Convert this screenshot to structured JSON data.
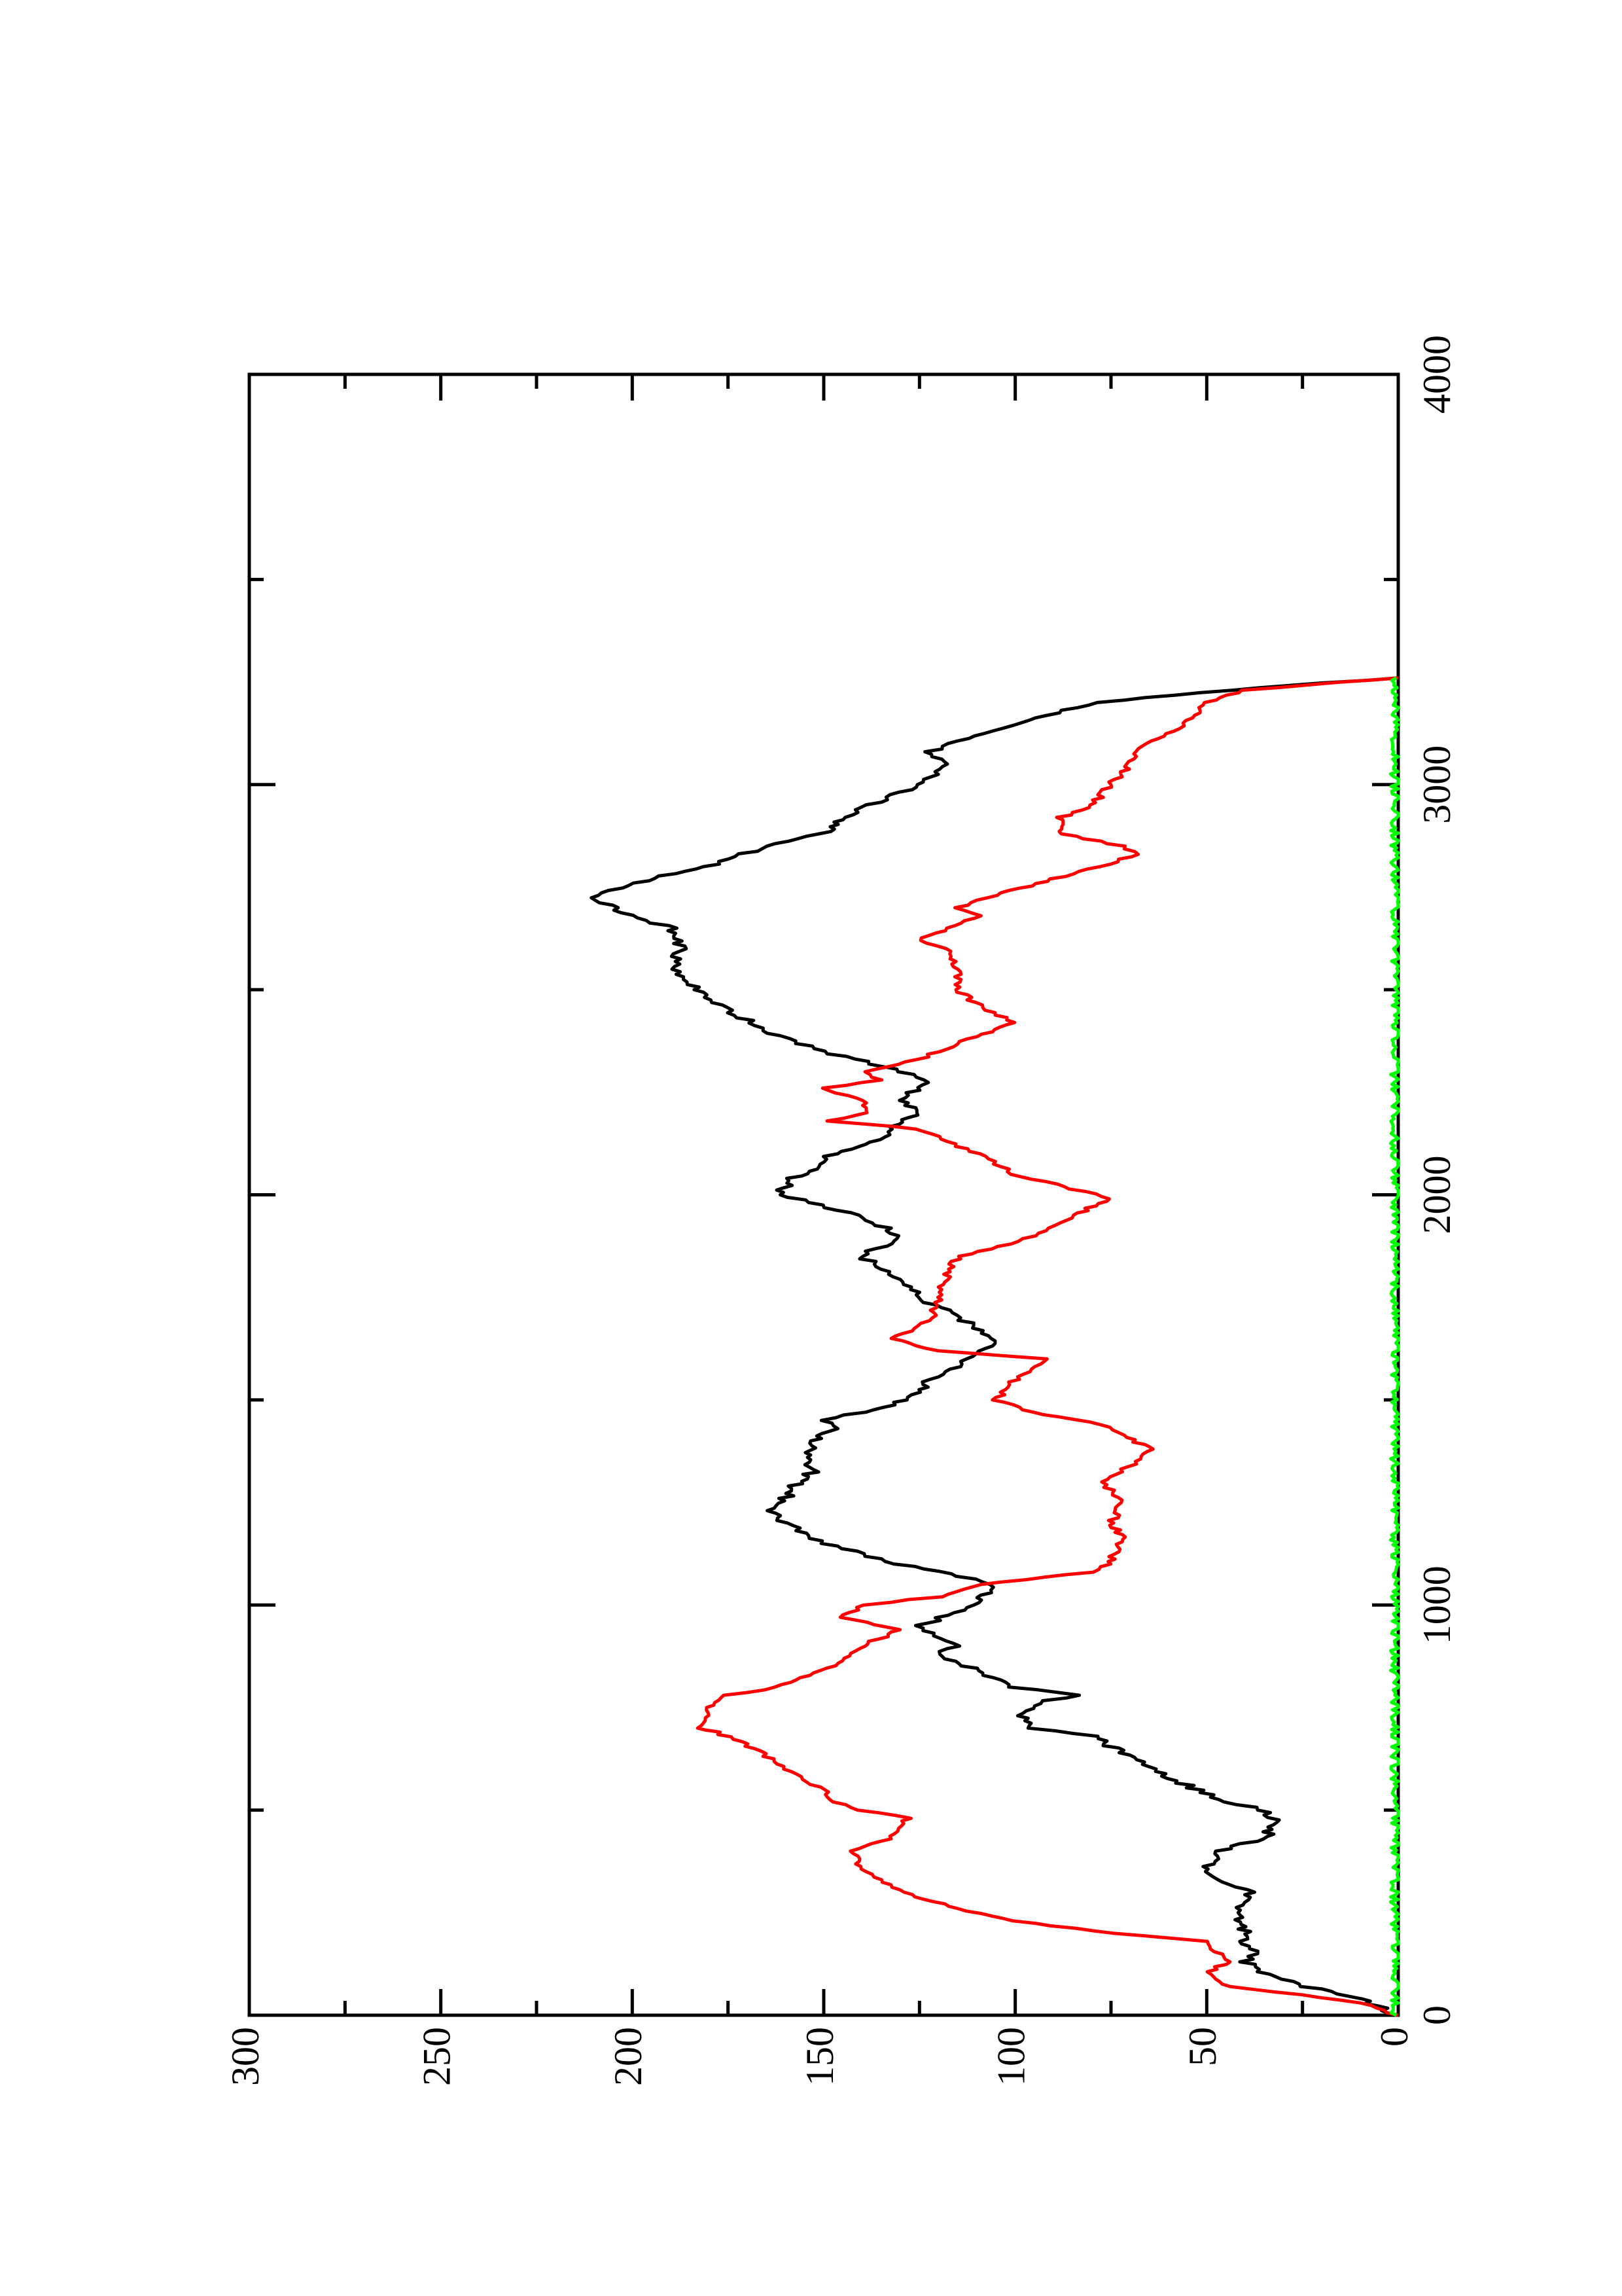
{
  "chart_data": {
    "type": "line",
    "orientation": "rotated-90-ccw",
    "title": "",
    "xlabel": "",
    "ylabel": "",
    "xlim": [
      0,
      4000
    ],
    "ylim": [
      0,
      300
    ],
    "x_ticks": [
      0,
      1000,
      2000,
      3000,
      4000
    ],
    "y_ticks": [
      0,
      50,
      100,
      150,
      200,
      250,
      300
    ],
    "x_tick_labels": [
      "0",
      "1000",
      "2000",
      "3000",
      "4000"
    ],
    "y_tick_labels": [
      "0",
      "50",
      "100",
      "150",
      "200",
      "250",
      "300"
    ],
    "grid": false,
    "legend": "none",
    "series": [
      {
        "color": "#000000",
        "points": [
          [
            0,
            0
          ],
          [
            40,
            10
          ],
          [
            70,
            24
          ],
          [
            100,
            35
          ],
          [
            130,
            40
          ],
          [
            150,
            37
          ],
          [
            180,
            41
          ],
          [
            210,
            40
          ],
          [
            250,
            42
          ],
          [
            300,
            39
          ],
          [
            350,
            50
          ],
          [
            400,
            47
          ],
          [
            430,
            35
          ],
          [
            470,
            32
          ],
          [
            500,
            35
          ],
          [
            520,
            45
          ],
          [
            560,
            55
          ],
          [
            600,
            65
          ],
          [
            640,
            72
          ],
          [
            680,
            80
          ],
          [
            700,
            95
          ],
          [
            730,
            98
          ],
          [
            760,
            95
          ],
          [
            780,
            85
          ],
          [
            800,
            100
          ],
          [
            840,
            110
          ],
          [
            880,
            120
          ],
          [
            900,
            115
          ],
          [
            950,
            125
          ],
          [
            1000,
            110
          ],
          [
            1030,
            108
          ],
          [
            1050,
            105
          ],
          [
            1070,
            115
          ],
          [
            1100,
            130
          ],
          [
            1150,
            150
          ],
          [
            1200,
            160
          ],
          [
            1230,
            165
          ],
          [
            1260,
            160
          ],
          [
            1290,
            158
          ],
          [
            1330,
            152
          ],
          [
            1360,
            155
          ],
          [
            1400,
            152
          ],
          [
            1430,
            148
          ],
          [
            1450,
            150
          ],
          [
            1470,
            140
          ],
          [
            1500,
            128
          ],
          [
            1550,
            122
          ],
          [
            1600,
            112
          ],
          [
            1650,
            105
          ],
          [
            1700,
            115
          ],
          [
            1750,
            125
          ],
          [
            1800,
            132
          ],
          [
            1850,
            140
          ],
          [
            1900,
            130
          ],
          [
            1950,
            140
          ],
          [
            2000,
            162
          ],
          [
            2040,
            158
          ],
          [
            2080,
            150
          ],
          [
            2100,
            148
          ],
          [
            2140,
            135
          ],
          [
            2160,
            133
          ],
          [
            2200,
            125
          ],
          [
            2230,
            130
          ],
          [
            2280,
            123
          ],
          [
            2300,
            130
          ],
          [
            2350,
            150
          ],
          [
            2400,
            165
          ],
          [
            2450,
            175
          ],
          [
            2500,
            183
          ],
          [
            2550,
            190
          ],
          [
            2600,
            187
          ],
          [
            2650,
            190
          ],
          [
            2700,
            205
          ],
          [
            2730,
            210
          ],
          [
            2760,
            200
          ],
          [
            2800,
            180
          ],
          [
            2850,
            165
          ],
          [
            2880,
            150
          ],
          [
            2920,
            145
          ],
          [
            3000,
            125
          ],
          [
            3050,
            117
          ],
          [
            3080,
            122
          ],
          [
            3100,
            118
          ],
          [
            3150,
            100
          ],
          [
            3200,
            80
          ],
          [
            3230,
            45
          ],
          [
            3260,
            0
          ]
        ]
      },
      {
        "color": "#ff0000",
        "points": [
          [
            0,
            0
          ],
          [
            30,
            10
          ],
          [
            50,
            25
          ],
          [
            70,
            45
          ],
          [
            100,
            50
          ],
          [
            130,
            45
          ],
          [
            180,
            50
          ],
          [
            200,
            75
          ],
          [
            230,
            100
          ],
          [
            260,
            115
          ],
          [
            300,
            130
          ],
          [
            330,
            135
          ],
          [
            350,
            140
          ],
          [
            400,
            142
          ],
          [
            430,
            133
          ],
          [
            480,
            128
          ],
          [
            500,
            140
          ],
          [
            520,
            148
          ],
          [
            550,
            150
          ],
          [
            600,
            160
          ],
          [
            650,
            168
          ],
          [
            690,
            178
          ],
          [
            700,
            183
          ],
          [
            750,
            180
          ],
          [
            780,
            175
          ],
          [
            800,
            162
          ],
          [
            840,
            150
          ],
          [
            870,
            145
          ],
          [
            900,
            140
          ],
          [
            940,
            130
          ],
          [
            970,
            145
          ],
          [
            1000,
            140
          ],
          [
            1020,
            120
          ],
          [
            1050,
            110
          ],
          [
            1080,
            80
          ],
          [
            1100,
            75
          ],
          [
            1130,
            74
          ],
          [
            1160,
            72
          ],
          [
            1200,
            75
          ],
          [
            1250,
            72
          ],
          [
            1280,
            75
          ],
          [
            1300,
            78
          ],
          [
            1350,
            68
          ],
          [
            1380,
            65
          ],
          [
            1420,
            73
          ],
          [
            1440,
            78
          ],
          [
            1470,
            95
          ],
          [
            1500,
            105
          ],
          [
            1550,
            100
          ],
          [
            1600,
            92
          ],
          [
            1620,
            120
          ],
          [
            1650,
            132
          ],
          [
            1680,
            125
          ],
          [
            1700,
            122
          ],
          [
            1750,
            120
          ],
          [
            1800,
            118
          ],
          [
            1850,
            115
          ],
          [
            1880,
            102
          ],
          [
            1900,
            95
          ],
          [
            1950,
            85
          ],
          [
            1990,
            75
          ],
          [
            2050,
            100
          ],
          [
            2100,
            110
          ],
          [
            2130,
            118
          ],
          [
            2160,
            125
          ],
          [
            2180,
            148
          ],
          [
            2200,
            138
          ],
          [
            2230,
            140
          ],
          [
            2260,
            150
          ],
          [
            2280,
            135
          ],
          [
            2300,
            140
          ],
          [
            2330,
            125
          ],
          [
            2380,
            112
          ],
          [
            2420,
            100
          ],
          [
            2450,
            108
          ],
          [
            2500,
            115
          ],
          [
            2550,
            115
          ],
          [
            2600,
            118
          ],
          [
            2620,
            125
          ],
          [
            2650,
            118
          ],
          [
            2680,
            110
          ],
          [
            2700,
            115
          ],
          [
            2730,
            105
          ],
          [
            2770,
            90
          ],
          [
            2800,
            78
          ],
          [
            2830,
            68
          ],
          [
            2850,
            72
          ],
          [
            2880,
            88
          ],
          [
            2920,
            88
          ],
          [
            2950,
            80
          ],
          [
            3000,
            75
          ],
          [
            3050,
            70
          ],
          [
            3100,
            66
          ],
          [
            3130,
            58
          ],
          [
            3150,
            55
          ],
          [
            3200,
            50
          ],
          [
            3230,
            40
          ],
          [
            3250,
            15
          ],
          [
            3260,
            0
          ]
        ]
      },
      {
        "color": "#00ff00",
        "points": [
          [
            0,
            0.5
          ],
          [
            3260,
            0.5
          ]
        ]
      }
    ]
  }
}
